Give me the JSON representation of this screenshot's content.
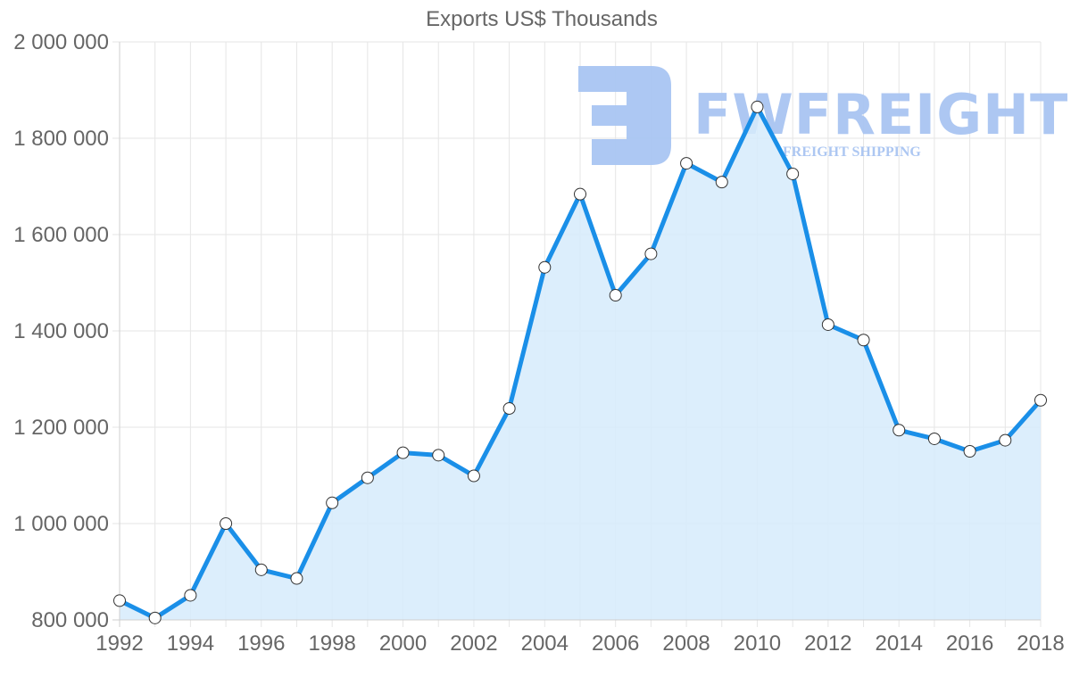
{
  "chart_data": {
    "type": "line",
    "title": "Exports US$ Thousands",
    "xlabel": "",
    "ylabel": "",
    "x": [
      1992,
      1993,
      1994,
      1995,
      1996,
      1997,
      1998,
      1999,
      2000,
      2001,
      2002,
      2003,
      2004,
      2005,
      2006,
      2007,
      2008,
      2009,
      2010,
      2011,
      2012,
      2013,
      2014,
      2015,
      2016,
      2017,
      2018
    ],
    "series": [
      {
        "name": "Exports US$ Thousands",
        "values": [
          840000,
          804000,
          851000,
          1000000,
          904000,
          886000,
          1043000,
          1095000,
          1147000,
          1142000,
          1099000,
          1239000,
          1532000,
          1684000,
          1474000,
          1560000,
          1748000,
          1709000,
          1865000,
          1726000,
          1413000,
          1381000,
          1194000,
          1176000,
          1150000,
          1173000,
          1256000
        ],
        "color": "#1a8fe8",
        "fill": "#d6ebfc",
        "filled": true
      }
    ],
    "ylim": [
      800000,
      2000000
    ],
    "xlim": [
      1992,
      2018
    ],
    "yticks": [
      800000,
      1000000,
      1200000,
      1400000,
      1600000,
      1800000,
      2000000
    ],
    "ytick_labels": [
      "800 000",
      "1 000 000",
      "1 200 000",
      "1 400 000",
      "1 600 000",
      "1 800 000",
      "2 000 000"
    ],
    "xticks": [
      1992,
      1994,
      1996,
      1998,
      2000,
      2002,
      2004,
      2006,
      2008,
      2010,
      2012,
      2014,
      2016,
      2018
    ],
    "xtick_labels": [
      "1992",
      "1994",
      "1996",
      "1998",
      "2000",
      "2002",
      "2004",
      "2006",
      "2008",
      "2010",
      "2012",
      "2014",
      "2016",
      "2018"
    ],
    "grid": true,
    "legend": null
  },
  "watermark": {
    "brand": "FWFREIGHT",
    "tagline": "FREIGHT SHIPPING",
    "color": "#a9c5f2"
  },
  "colors": {
    "line": "#1a8fe8",
    "fill": "#d6ebfc",
    "grid": "#e6e6e6",
    "axis": "#cfcfcf",
    "text": "#666666",
    "point_fill": "#ffffff",
    "point_stroke": "#333333"
  }
}
